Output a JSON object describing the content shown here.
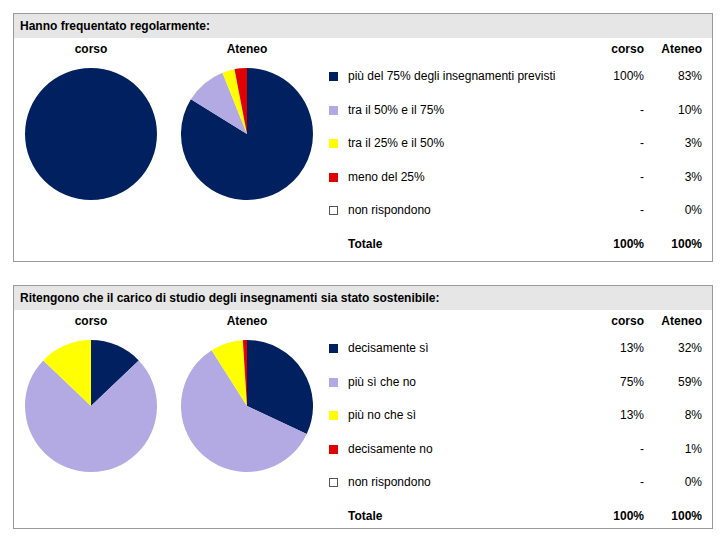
{
  "chart_data": [
    {
      "type": "pie",
      "title": "Hanno frequentato regolarmente:",
      "categories": [
        "più del 75% degli insegnamenti previsti",
        "tra il 50% e il 75%",
        "tra il 25% e il 50%",
        "meno del 25%",
        "non rispondono"
      ],
      "colors": [
        "#002060",
        "#b3aae3",
        "#ffff00",
        "#e00000",
        "#ffffff"
      ],
      "series": [
        {
          "name": "corso",
          "values": [
            100,
            0,
            0,
            0,
            0
          ],
          "value_labels": [
            "100%",
            "-",
            "-",
            "-",
            "-"
          ]
        },
        {
          "name": "Ateneo",
          "values": [
            83,
            10,
            3,
            3,
            0
          ],
          "value_labels": [
            "83%",
            "10%",
            "3%",
            "3%",
            "0%"
          ]
        }
      ],
      "total_label": "Totale",
      "totals": [
        {
          "value": 100,
          "label": "100%"
        },
        {
          "value": 100,
          "label": "100%"
        }
      ]
    },
    {
      "type": "pie",
      "title": "Ritengono che il carico di studio degli insegnamenti sia stato sostenibile:",
      "categories": [
        "decisamente sì",
        "più sì che no",
        "più no che sì",
        "decisamente no",
        "non rispondono"
      ],
      "colors": [
        "#002060",
        "#b3aae3",
        "#ffff00",
        "#e00000",
        "#ffffff"
      ],
      "series": [
        {
          "name": "corso",
          "values": [
            13,
            75,
            13,
            0,
            0
          ],
          "value_labels": [
            "13%",
            "75%",
            "13%",
            "-",
            "-"
          ]
        },
        {
          "name": "Ateneo",
          "values": [
            32,
            59,
            8,
            1,
            0
          ],
          "value_labels": [
            "32%",
            "59%",
            "8%",
            "1%",
            "0%"
          ]
        }
      ],
      "total_label": "Totale",
      "totals": [
        {
          "value": 100,
          "label": "100%"
        },
        {
          "value": 100,
          "label": "100%"
        }
      ]
    }
  ]
}
